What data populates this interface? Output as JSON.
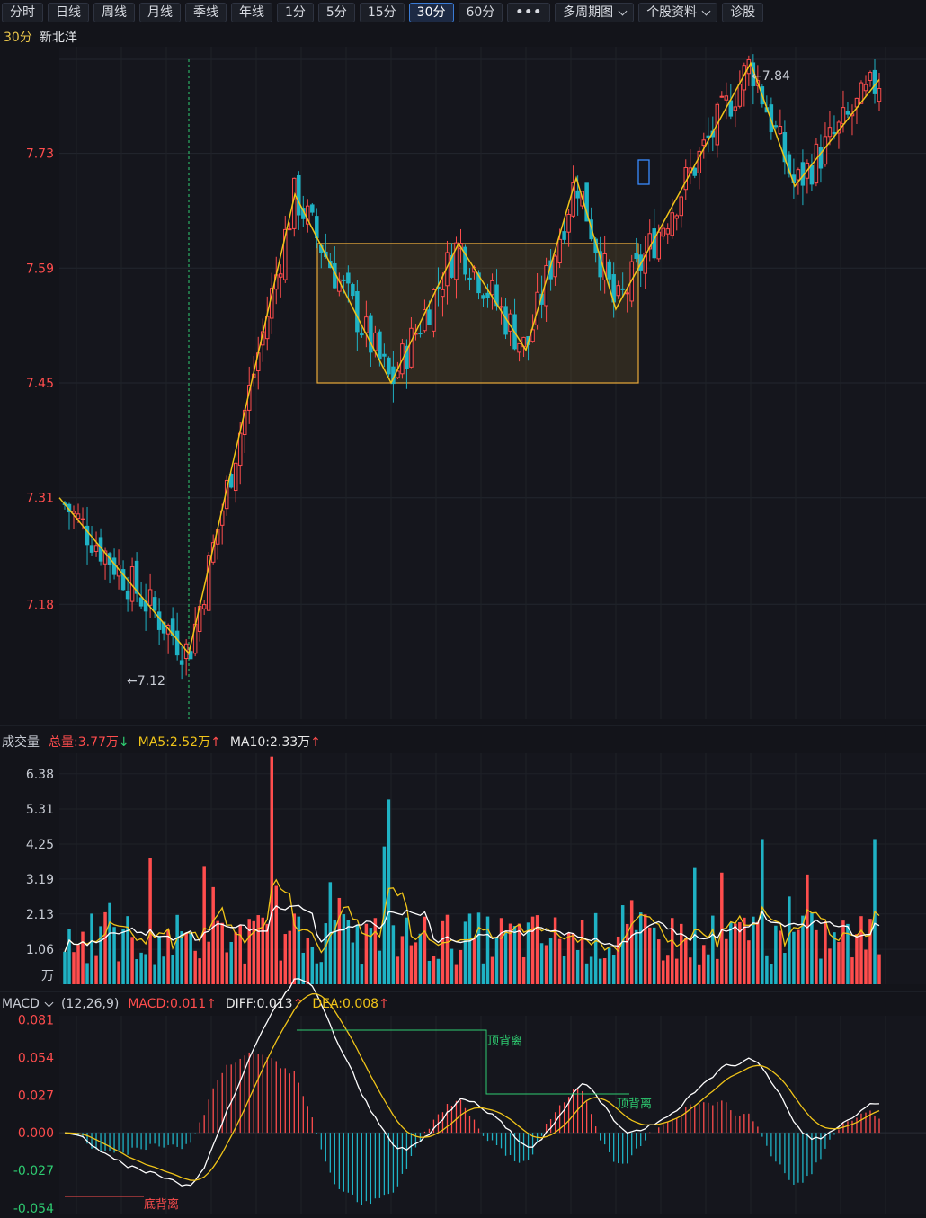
{
  "toolbar": {
    "buttons": [
      "分时",
      "日线",
      "周线",
      "月线",
      "季线",
      "年线",
      "1分",
      "5分",
      "15分",
      "30分",
      "60分"
    ],
    "active": "30分",
    "more": "•••",
    "multi_period": "多周期图",
    "stock_info": "个股资料",
    "diagnose": "诊股"
  },
  "title": {
    "period": "30分",
    "stock_name": "新北洋"
  },
  "price_axis": {
    "ticks": [
      "7.73",
      "7.59",
      "7.45",
      "7.31",
      "7.18"
    ]
  },
  "annotations": {
    "low": "←7.12",
    "high": "←7.84",
    "top_div_1": "顶背离",
    "top_div_2": "顶背离",
    "bottom_div": "底背离"
  },
  "volume": {
    "label": "成交量",
    "total": "总量:3.77万",
    "ma5": "MA5:2.52万",
    "ma10": "MA10:2.33万",
    "ticks": [
      "6.38",
      "5.31",
      "4.25",
      "3.19",
      "2.13",
      "1.06"
    ],
    "unit": "万"
  },
  "macd": {
    "label": "MACD",
    "params": "(12,26,9)",
    "macd": "MACD:0.011",
    "diff": "DIFF:0.013",
    "dea": "DEA:0.008",
    "ticks": [
      "0.081",
      "0.054",
      "0.027",
      "0.000",
      "-0.027",
      "-0.054"
    ]
  },
  "colors": {
    "up": "#ff4d4d",
    "down": "#1fb2c4",
    "zigzag": "#f0c419",
    "ma5": "#f0c419",
    "ma10": "#ffffff"
  },
  "chart_data": {
    "type": "candlestick",
    "price_range": [
      7.04,
      7.86
    ],
    "volume_range": [
      0,
      7.0
    ],
    "macd_range": [
      -0.058,
      0.084
    ],
    "zigzag_prices": [
      7.31,
      7.12,
      7.68,
      7.45,
      7.62,
      7.49,
      7.7,
      7.54,
      7.84,
      7.69,
      7.82
    ],
    "box_price_range": [
      7.45,
      7.62
    ]
  }
}
